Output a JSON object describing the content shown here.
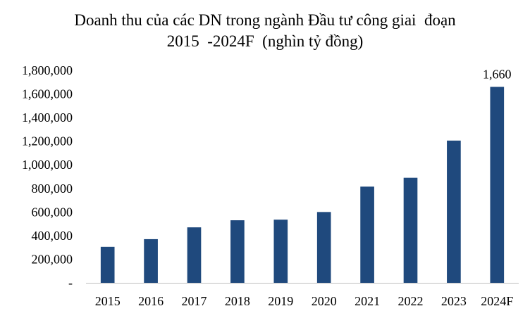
{
  "chart_data": {
    "type": "bar",
    "title_lines": [
      "Doanh thu của các DN trong ngành Đầu tư công giai  đoạn",
      "2015  -2024F  (nghìn tỷ đồng)"
    ],
    "categories": [
      "2015",
      "2016",
      "2017",
      "2018",
      "2019",
      "2020",
      "2021",
      "2022",
      "2023",
      "2024F"
    ],
    "values": [
      305000,
      370000,
      470000,
      530000,
      535000,
      600000,
      815000,
      890000,
      1205000,
      1660000
    ],
    "ylim": [
      0,
      1800000
    ],
    "yticks": [
      0,
      200000,
      400000,
      600000,
      800000,
      1000000,
      1200000,
      1400000,
      1600000,
      1800000
    ],
    "ytick_labels": [
      "-",
      "200,000",
      "400,000",
      "600,000",
      "800,000",
      "1,000,000",
      "1,200,000",
      "1,400,000",
      "1,600,000",
      "1,800,000"
    ],
    "data_labels": [
      null,
      null,
      null,
      null,
      null,
      null,
      null,
      null,
      null,
      "1,660"
    ],
    "grid": false,
    "legend": "none",
    "bar_color": "#1f497d",
    "axis_color": "#bfbfbf"
  }
}
